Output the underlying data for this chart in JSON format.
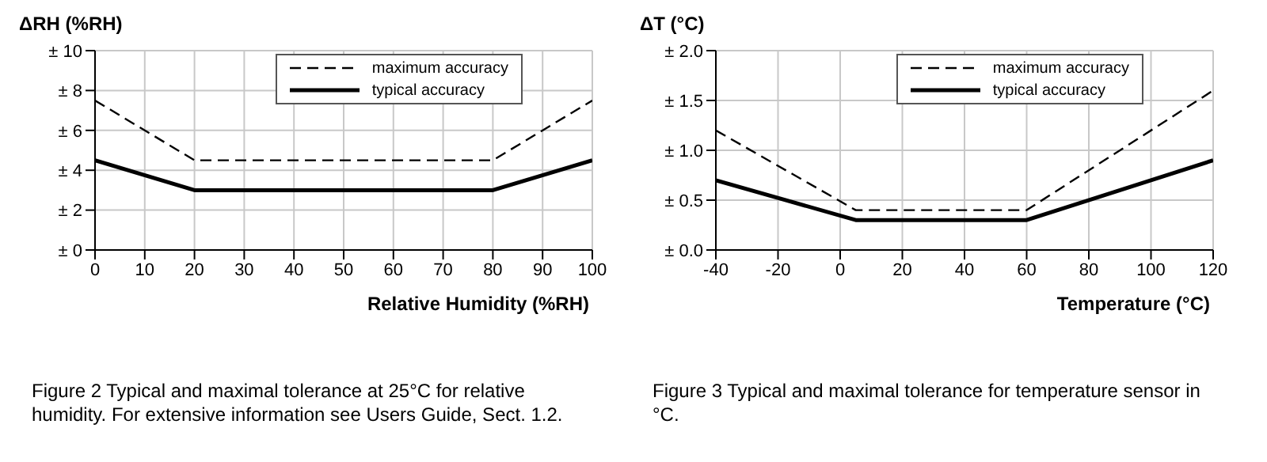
{
  "chart_data": [
    {
      "type": "line",
      "ylabel": "ΔRH (%RH)",
      "xlabel": "Relative Humidity (%RH)",
      "x": [
        0,
        20,
        80,
        100
      ],
      "series": [
        {
          "name": "maximum accuracy",
          "color": "#000000",
          "line_style": "dashed",
          "values": [
            7.5,
            4.5,
            4.5,
            7.5
          ]
        },
        {
          "name": "typical accuracy",
          "color": "#000000",
          "line_style": "solid",
          "values": [
            4.5,
            3,
            3,
            4.5
          ]
        }
      ],
      "xlim": [
        0,
        100
      ],
      "xticks": [
        0,
        10,
        20,
        30,
        40,
        50,
        60,
        70,
        80,
        90,
        100
      ],
      "ylim": [
        0,
        10
      ],
      "yticks": [
        {
          "value": 0,
          "label": "± 0"
        },
        {
          "value": 2,
          "label": "± 2"
        },
        {
          "value": 4,
          "label": "± 4"
        },
        {
          "value": 6,
          "label": "± 6"
        },
        {
          "value": 8,
          "label": "± 8"
        },
        {
          "value": 10,
          "label": "± 10"
        }
      ],
      "grid": true,
      "legend": "top right",
      "marker": "none",
      "annotations": [
        "Figure 2  Typical and maximal tolerance at 25°C for relative humidity. For extensive information see Users Guide, Sect. 1.2."
      ]
    },
    {
      "type": "line",
      "ylabel": "ΔT (°C)",
      "xlabel": "Temperature (°C)",
      "x": [
        -40,
        5,
        60,
        120
      ],
      "series": [
        {
          "name": "maximum accuracy",
          "color": "#000000",
          "line_style": "dashed",
          "values": [
            1.2,
            0.4,
            0.4,
            1.6
          ]
        },
        {
          "name": "typical accuracy",
          "color": "#000000",
          "line_style": "solid",
          "values": [
            0.7,
            0.3,
            0.3,
            0.9
          ]
        }
      ],
      "xlim": [
        -40,
        120
      ],
      "xticks": [
        -40,
        -20,
        0,
        20,
        40,
        60,
        80,
        100,
        120
      ],
      "ylim": [
        0,
        2
      ],
      "yticks": [
        {
          "value": 0,
          "label": "± 0.0"
        },
        {
          "value": 0.5,
          "label": "± 0.5"
        },
        {
          "value": 1,
          "label": "± 1.0"
        },
        {
          "value": 1.5,
          "label": "± 1.5"
        },
        {
          "value": 2,
          "label": "± 2.0"
        }
      ],
      "grid": true,
      "legend": "top right",
      "marker": "none",
      "annotations": [
        "Figure 3  Typical and maximal tolerance for temperature sensor in °C."
      ]
    }
  ]
}
